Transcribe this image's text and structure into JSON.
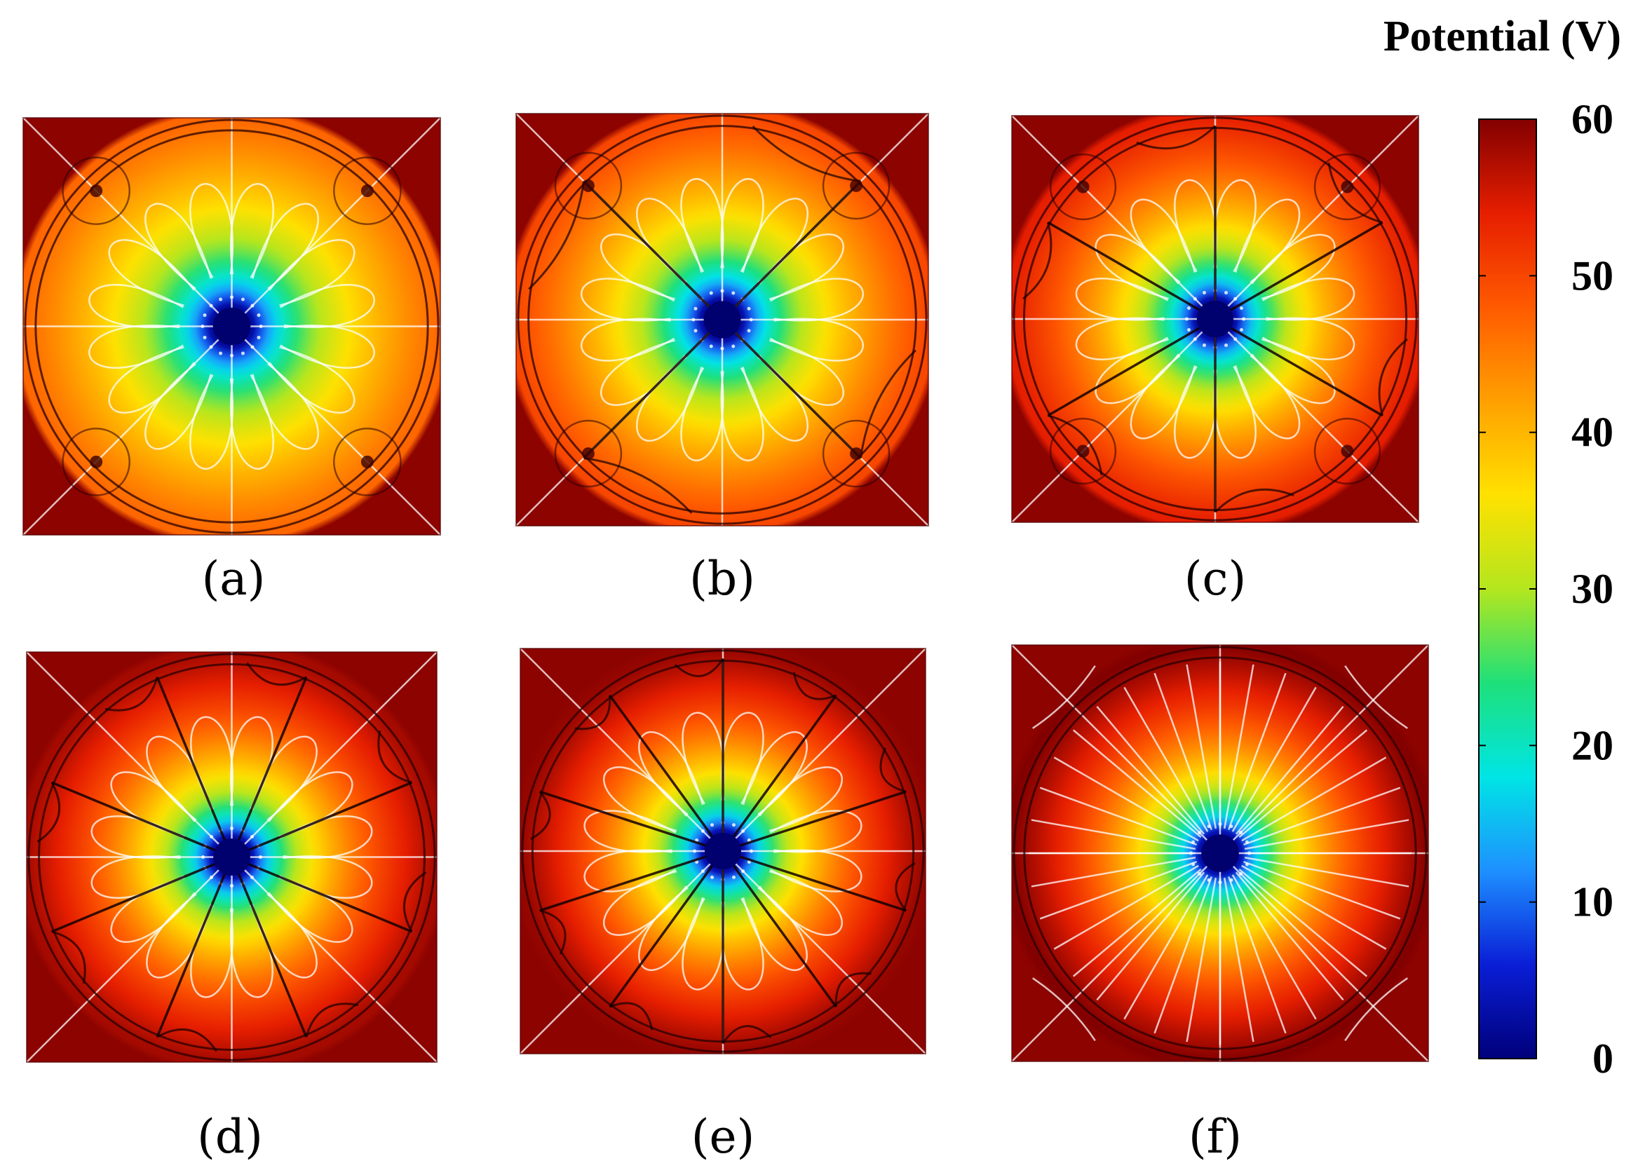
{
  "colorbar": {
    "title": "Potential (V)",
    "min": 0,
    "max": 60,
    "ticks": [
      {
        "value": 0,
        "label": "0"
      },
      {
        "value": 10,
        "label": "10"
      },
      {
        "value": 20,
        "label": "20"
      },
      {
        "value": 30,
        "label": "30"
      },
      {
        "value": 40,
        "label": "40"
      },
      {
        "value": 50,
        "label": "50"
      },
      {
        "value": 60,
        "label": "60"
      }
    ],
    "colormap": [
      "#00007a",
      "#0a1ed6",
      "#1e90ff",
      "#00e5e5",
      "#1ee07a",
      "#b4e61e",
      "#ffe100",
      "#ffa000",
      "#ff5a00",
      "#e61e00",
      "#820000"
    ]
  },
  "panels": [
    {
      "label": "(a)",
      "spokes": 0,
      "max_potential": 47,
      "corner_electrodes": true
    },
    {
      "label": "(b)",
      "spokes": 4,
      "max_potential": 50,
      "corner_electrodes": true
    },
    {
      "label": "(c)",
      "spokes": 6,
      "max_potential": 54,
      "corner_electrodes": true
    },
    {
      "label": "(d)",
      "spokes": 8,
      "max_potential": 58,
      "corner_electrodes": false
    },
    {
      "label": "(e)",
      "spokes": 10,
      "max_potential": 59,
      "corner_electrodes": false
    },
    {
      "label": "(f)",
      "spokes": 0,
      "max_potential": 60,
      "corner_electrodes": false
    }
  ]
}
